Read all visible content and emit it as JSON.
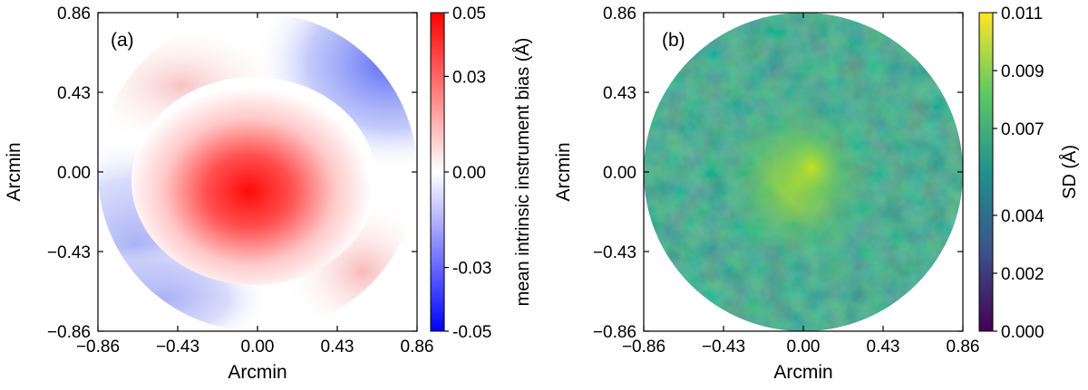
{
  "chart_data": [
    {
      "type": "heatmap",
      "panel_label": "(a)",
      "description_of_field": "circular map; strong positive bias at center, rising to white ring, negative (blue) toward upper-right and lower-left edges",
      "xlabel": "Arcmin",
      "ylabel": "Arcmin",
      "xlim": [
        -0.86,
        0.86
      ],
      "ylim": [
        -0.86,
        0.86
      ],
      "xticks": [
        "−0.86",
        "−0.43",
        "0.00",
        "0.43",
        "0.86"
      ],
      "yticks": [
        "0.86",
        "0.43",
        "0.00",
        "−0.43",
        "−0.86"
      ],
      "colorbar": {
        "label": "mean intrinsic instrument bias (Å)",
        "range": [
          -0.05,
          0.05
        ],
        "ticks": [
          "0.05",
          "0.03",
          "0.00",
          "-0.03",
          "-0.05"
        ],
        "colormap": "bwr",
        "colors": {
          "low": "#0000ff",
          "mid": "#ffffff",
          "high": "#ff0000"
        }
      }
    },
    {
      "type": "heatmap",
      "panel_label": "(b)",
      "xlabel": "Arcmin",
      "ylabel": "Arcmin",
      "xlim": [
        -0.86,
        0.86
      ],
      "ylim": [
        -0.86,
        0.86
      ],
      "xticks": [
        "−0.86",
        "−0.43",
        "0.00",
        "0.43",
        "0.86"
      ],
      "yticks": [
        "0.86",
        "0.43",
        "0.00",
        "−0.43",
        "−0.86"
      ],
      "colorbar": {
        "label": "SD (Å)",
        "range": [
          0.0,
          0.011
        ],
        "ticks": [
          "0.011",
          "0.009",
          "0.007",
          "0.004",
          "0.002",
          "0.000"
        ],
        "colormap": "viridis",
        "colors": {
          "low": "#440154",
          "mid": "#21918c",
          "high": "#fde725"
        }
      }
    }
  ]
}
